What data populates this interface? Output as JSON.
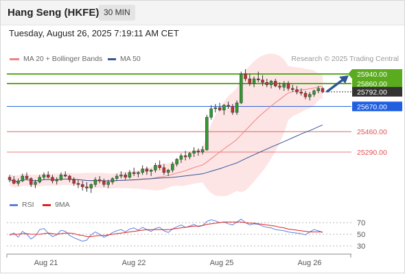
{
  "header": {
    "title": "Hang Seng (HKFE)",
    "interval": "30 MIN"
  },
  "timestamp": "Tuesday, August 26, 2025 7:19:11 AM CET",
  "legend": {
    "ma20": {
      "label": "MA 20 + Bollinger Bands",
      "color": "#f08080"
    },
    "ma50": {
      "label": "MA 50",
      "color": "#2f5597"
    }
  },
  "credit": "Research © 2025 Trading Central",
  "price_levels": {
    "resistance": [
      {
        "value": "25940.00",
        "color": "#5aab1e"
      },
      {
        "value": "25860.00",
        "color": "#5aab1e"
      }
    ],
    "last": {
      "value": "25792.00",
      "color": "#333333"
    },
    "pivot": {
      "value": "25670.00",
      "color": "#1f5fe0"
    },
    "support": [
      {
        "value": "25460.00",
        "color": "#e05050"
      },
      {
        "value": "25290.00",
        "color": "#e05050"
      }
    ]
  },
  "rsi": {
    "labels": {
      "rsi": "RSI",
      "ma": "9MA"
    },
    "colors": {
      "rsi": "#5b7fdb",
      "ma": "#e02020"
    },
    "levels": [
      "70",
      "50",
      "30"
    ]
  },
  "x_axis": {
    "labels": [
      "Aug 21",
      "Aug 22",
      "Aug 25",
      "Aug 26"
    ]
  },
  "chart_data": {
    "type": "candlestick",
    "price_range": [
      25000,
      26000
    ],
    "candles": [
      [
        25080,
        25100,
        25040,
        25060
      ],
      [
        25060,
        25090,
        25020,
        25030
      ],
      [
        25030,
        25070,
        25010,
        25050
      ],
      [
        25050,
        25110,
        25040,
        25090
      ],
      [
        25090,
        25120,
        25060,
        25070
      ],
      [
        25070,
        25080,
        25000,
        25020
      ],
      [
        25020,
        25060,
        24990,
        25040
      ],
      [
        25040,
        25100,
        25030,
        25080
      ],
      [
        25080,
        25120,
        25060,
        25100
      ],
      [
        25100,
        25130,
        25070,
        25080
      ],
      [
        25080,
        25100,
        25030,
        25050
      ],
      [
        25050,
        25080,
        25020,
        25060
      ],
      [
        25060,
        25120,
        25050,
        25100
      ],
      [
        25100,
        25130,
        25080,
        25090
      ],
      [
        25090,
        25100,
        25040,
        25060
      ],
      [
        25060,
        25080,
        25010,
        25030
      ],
      [
        25030,
        25060,
        24990,
        25020
      ],
      [
        25020,
        25050,
        24970,
        25000
      ],
      [
        25000,
        25040,
        24960,
        24990
      ],
      [
        24990,
        25030,
        24950,
        25020
      ],
      [
        25020,
        25080,
        25000,
        25060
      ],
      [
        25060,
        25090,
        25030,
        25050
      ],
      [
        25050,
        25070,
        25000,
        25020
      ],
      [
        25020,
        25060,
        24990,
        25040
      ],
      [
        25040,
        25080,
        25020,
        25070
      ],
      [
        25070,
        25110,
        25050,
        25090
      ],
      [
        25090,
        25130,
        25070,
        25100
      ],
      [
        25100,
        25120,
        25060,
        25080
      ],
      [
        25080,
        25140,
        25070,
        25120
      ],
      [
        25120,
        25160,
        25090,
        25110
      ],
      [
        25110,
        25130,
        25080,
        25120
      ],
      [
        25120,
        25180,
        25100,
        25150
      ],
      [
        25150,
        25170,
        25100,
        25130
      ],
      [
        25130,
        25150,
        25090,
        25140
      ],
      [
        25140,
        25200,
        25120,
        25180
      ],
      [
        25180,
        25220,
        25140,
        25160
      ],
      [
        25160,
        25190,
        25100,
        25120
      ],
      [
        25120,
        25150,
        25090,
        25140
      ],
      [
        25140,
        25210,
        25120,
        25190
      ],
      [
        25190,
        25240,
        25170,
        25230
      ],
      [
        25230,
        25280,
        25200,
        25260
      ],
      [
        25260,
        25300,
        25220,
        25250
      ],
      [
        25250,
        25290,
        25230,
        25280
      ],
      [
        25280,
        25330,
        25250,
        25300
      ],
      [
        25300,
        25320,
        25260,
        25290
      ],
      [
        25290,
        25340,
        25270,
        25310
      ],
      [
        25310,
        25600,
        25300,
        25580
      ],
      [
        25580,
        25680,
        25560,
        25650
      ],
      [
        25650,
        25690,
        25620,
        25660
      ],
      [
        25660,
        25700,
        25630,
        25640
      ],
      [
        25640,
        25690,
        25600,
        25680
      ],
      [
        25680,
        25710,
        25650,
        25670
      ],
      [
        25670,
        25690,
        25600,
        25620
      ],
      [
        25620,
        25720,
        25600,
        25700
      ],
      [
        25700,
        25960,
        25690,
        25940
      ],
      [
        25940,
        25980,
        25880,
        25900
      ],
      [
        25900,
        25940,
        25840,
        25860
      ],
      [
        25860,
        25920,
        25830,
        25900
      ],
      [
        25900,
        25960,
        25870,
        25890
      ],
      [
        25890,
        25930,
        25840,
        25870
      ],
      [
        25870,
        25900,
        25830,
        25850
      ],
      [
        25850,
        25890,
        25820,
        25880
      ],
      [
        25880,
        25900,
        25830,
        25840
      ],
      [
        25840,
        25870,
        25810,
        25830
      ],
      [
        25830,
        25880,
        25800,
        25860
      ],
      [
        25860,
        25880,
        25800,
        25820
      ],
      [
        25820,
        25850,
        25790,
        25810
      ],
      [
        25810,
        25840,
        25770,
        25790
      ],
      [
        25790,
        25820,
        25760,
        25780
      ],
      [
        25780,
        25800,
        25730,
        25750
      ],
      [
        25750,
        25790,
        25720,
        25770
      ],
      [
        25770,
        25810,
        25750,
        25800
      ],
      [
        25800,
        25840,
        25780,
        25820
      ],
      [
        25820,
        25830,
        25780,
        25792
      ]
    ],
    "rsi": [
      48,
      52,
      45,
      55,
      50,
      42,
      47,
      58,
      60,
      52,
      46,
      49,
      57,
      55,
      48,
      44,
      41,
      38,
      40,
      49,
      54,
      50,
      45,
      48,
      53,
      56,
      58,
      54,
      59,
      61,
      57,
      62,
      58,
      55,
      60,
      62,
      56,
      53,
      59,
      63,
      66,
      62,
      64,
      67,
      63,
      65,
      72,
      75,
      73,
      70,
      71,
      68,
      66,
      71,
      76,
      70,
      66,
      68,
      67,
      64,
      62,
      61,
      58,
      57,
      56,
      54,
      53,
      52,
      51,
      49,
      54,
      58,
      56,
      53
    ],
    "ma": [
      50,
      50,
      50,
      51,
      51,
      50,
      50,
      50,
      51,
      52,
      51,
      50,
      51,
      52,
      52,
      51,
      49,
      48,
      46,
      46,
      47,
      48,
      48,
      49,
      50,
      51,
      52,
      53,
      54,
      55,
      56,
      57,
      58,
      58,
      58,
      58,
      58,
      58,
      59,
      60,
      61,
      62,
      63,
      64,
      64,
      65,
      67,
      68,
      69,
      70,
      71,
      71,
      71,
      71,
      71,
      70,
      69,
      69,
      68,
      67,
      66,
      65,
      64,
      62,
      61,
      59,
      58,
      57,
      56,
      55,
      54,
      54,
      54,
      54
    ]
  }
}
